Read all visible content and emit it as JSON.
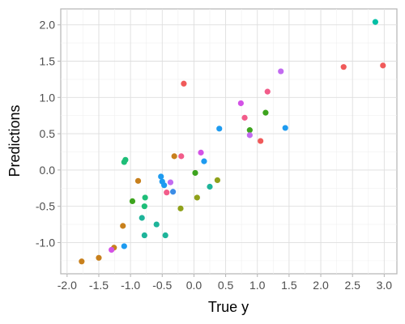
{
  "chart_data": {
    "type": "scatter",
    "xlabel": "True y",
    "ylabel": "Predictions",
    "xlim": [
      -2.1,
      3.2
    ],
    "ylim": [
      -1.43,
      2.22
    ],
    "x_ticks": [
      -2.0,
      -1.5,
      -1.0,
      -0.5,
      0.0,
      0.5,
      1.0,
      1.5,
      2.0,
      2.5,
      3.0
    ],
    "x_tick_labels": [
      "-2.0",
      "-1.5",
      "-1.0",
      "-0.5",
      "0.0",
      "0.5",
      "1.0",
      "1.5",
      "2.0",
      "2.5",
      "3.0"
    ],
    "y_ticks": [
      -1.0,
      -0.5,
      0.0,
      0.5,
      1.0,
      1.5,
      2.0
    ],
    "y_tick_labels": [
      "-1.0",
      "-0.5",
      "0.0",
      "0.5",
      "1.0",
      "1.5",
      "2.0"
    ],
    "grid": true,
    "legend": "none",
    "points": [
      {
        "x": 2.86,
        "y": 2.04,
        "color": "#00BFA5"
      },
      {
        "x": 2.36,
        "y": 1.42,
        "color": "#F05A5A"
      },
      {
        "x": 2.98,
        "y": 1.44,
        "color": "#F05A5A"
      },
      {
        "x": -0.16,
        "y": 1.19,
        "color": "#F05A5A"
      },
      {
        "x": 1.37,
        "y": 1.36,
        "color": "#C26BF0"
      },
      {
        "x": 1.16,
        "y": 1.08,
        "color": "#F25C8A"
      },
      {
        "x": 0.74,
        "y": 0.92,
        "color": "#D352E6"
      },
      {
        "x": 1.13,
        "y": 0.79,
        "color": "#3DA41E"
      },
      {
        "x": 0.8,
        "y": 0.72,
        "color": "#F25C8A"
      },
      {
        "x": 0.4,
        "y": 0.57,
        "color": "#1E9BF0"
      },
      {
        "x": 1.44,
        "y": 0.58,
        "color": "#1E9BF0"
      },
      {
        "x": 0.88,
        "y": 0.55,
        "color": "#3DA41E"
      },
      {
        "x": 0.88,
        "y": 0.48,
        "color": "#C26BF0"
      },
      {
        "x": 1.05,
        "y": 0.4,
        "color": "#F05A5A"
      },
      {
        "x": 0.11,
        "y": 0.24,
        "color": "#D352E6"
      },
      {
        "x": -0.31,
        "y": 0.19,
        "color": "#C8801C"
      },
      {
        "x": -0.2,
        "y": 0.19,
        "color": "#F25C8A"
      },
      {
        "x": 0.16,
        "y": 0.12,
        "color": "#1E9BF0"
      },
      {
        "x": -1.08,
        "y": 0.14,
        "color": "#1EBE78"
      },
      {
        "x": -1.1,
        "y": 0.11,
        "color": "#1EBE78"
      },
      {
        "x": 0.02,
        "y": -0.04,
        "color": "#3DA41E"
      },
      {
        "x": -0.52,
        "y": -0.09,
        "color": "#1E9BF0"
      },
      {
        "x": 0.37,
        "y": -0.14,
        "color": "#8FA11A"
      },
      {
        "x": -0.88,
        "y": -0.15,
        "color": "#C8801C"
      },
      {
        "x": -0.5,
        "y": -0.16,
        "color": "#1E9BF0"
      },
      {
        "x": -0.37,
        "y": -0.17,
        "color": "#C26BF0"
      },
      {
        "x": -0.47,
        "y": -0.21,
        "color": "#1E9BF0"
      },
      {
        "x": 0.25,
        "y": -0.23,
        "color": "#1EB49A"
      },
      {
        "x": -0.33,
        "y": -0.3,
        "color": "#3B8CE6"
      },
      {
        "x": -0.43,
        "y": -0.31,
        "color": "#F25C8A"
      },
      {
        "x": -0.77,
        "y": -0.38,
        "color": "#1EBE78"
      },
      {
        "x": 0.05,
        "y": -0.38,
        "color": "#8FA11A"
      },
      {
        "x": -0.97,
        "y": -0.43,
        "color": "#3DA41E"
      },
      {
        "x": -0.78,
        "y": -0.5,
        "color": "#1EBE78"
      },
      {
        "x": -0.21,
        "y": -0.53,
        "color": "#8FA11A"
      },
      {
        "x": -0.82,
        "y": -0.66,
        "color": "#1EB49A"
      },
      {
        "x": -0.59,
        "y": -0.75,
        "color": "#1EB49A"
      },
      {
        "x": -1.12,
        "y": -0.77,
        "color": "#C8801C"
      },
      {
        "x": -0.78,
        "y": -0.9,
        "color": "#1EB49A"
      },
      {
        "x": -0.45,
        "y": -0.9,
        "color": "#1EB49A"
      },
      {
        "x": -1.1,
        "y": -1.05,
        "color": "#1E9BF0"
      },
      {
        "x": -1.26,
        "y": -1.07,
        "color": "#C8801C"
      },
      {
        "x": -1.3,
        "y": -1.1,
        "color": "#D352E6"
      },
      {
        "x": -1.5,
        "y": -1.21,
        "color": "#C8801C"
      },
      {
        "x": -1.77,
        "y": -1.26,
        "color": "#C8801C"
      }
    ]
  }
}
